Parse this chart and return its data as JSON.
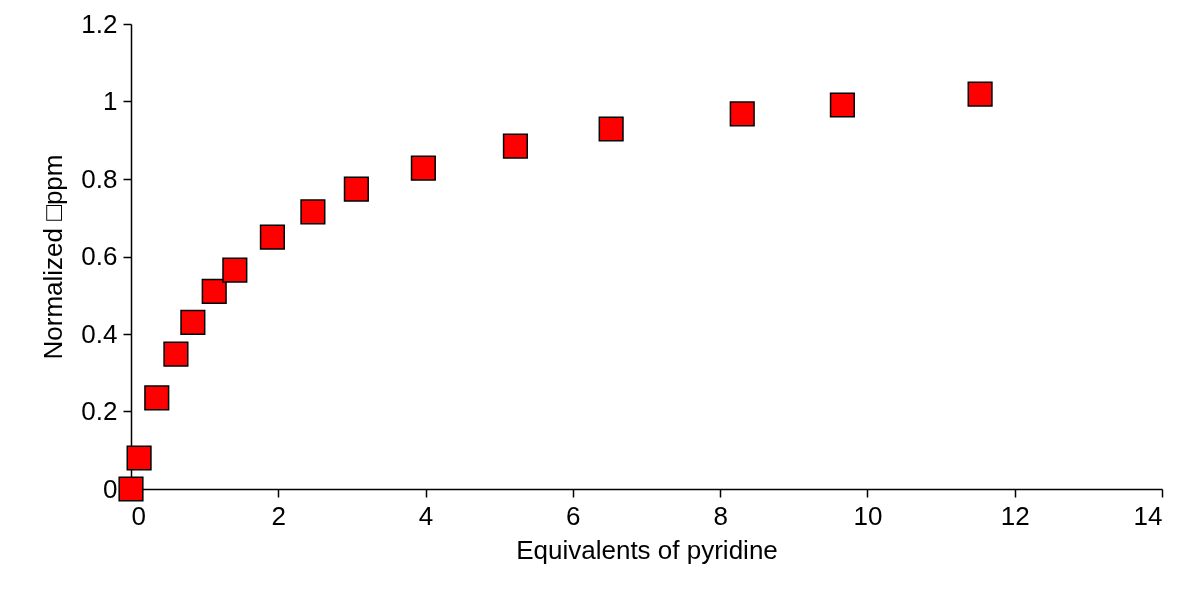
{
  "chart_data": {
    "type": "scatter",
    "xlabel": "Equivalents of pyridine",
    "ylabel": "Normalized □ppm",
    "x": [
      0,
      0.11,
      0.35,
      0.61,
      0.84,
      1.13,
      1.41,
      1.92,
      2.47,
      3.06,
      3.97,
      5.22,
      6.52,
      8.3,
      9.66,
      11.53
    ],
    "series": [
      {
        "color": "#ff0000",
        "values": [
          0,
          0.08,
          0.235,
          0.348,
          0.43,
          0.51,
          0.565,
          0.65,
          0.715,
          0.774,
          0.828,
          0.885,
          0.929,
          0.968,
          0.991,
          1.019
        ]
      }
    ],
    "xlim": [
      0,
      14
    ],
    "xticks": [
      0,
      2,
      4,
      6,
      8,
      10,
      12,
      14
    ],
    "ylim": [
      0,
      1.2
    ],
    "yticks": [
      0,
      0.2,
      0.4,
      0.6,
      0.8,
      1,
      1.2
    ],
    "marker": "square",
    "grid": false,
    "legend": false
  }
}
